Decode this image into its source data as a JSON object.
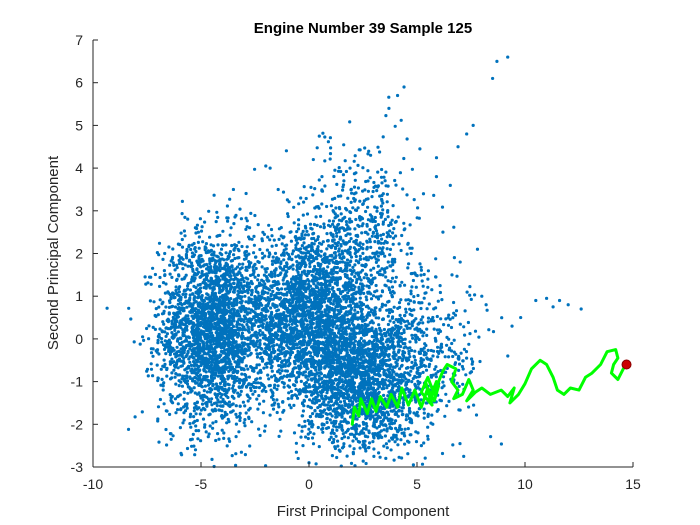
{
  "chart_data": {
    "type": "scatter",
    "title": "Engine Number 39 Sample 125",
    "xlabel": "First Principal Component",
    "ylabel": "Second Principal Component",
    "xlim": [
      -10,
      15
    ],
    "ylim": [
      -3,
      7
    ],
    "xticks": [
      "-10",
      "-5",
      "0",
      "5",
      "10",
      "15"
    ],
    "yticks": [
      "-3",
      "-2",
      "-1",
      "0",
      "1",
      "2",
      "3",
      "4",
      "5",
      "6",
      "7"
    ],
    "grid": false,
    "colors": {
      "scatter": "#0072BD",
      "trajectory": "#00FF00",
      "endpoint": "#CC0000",
      "axes": "#262626"
    },
    "scatter_clusters": [
      {
        "cx": -4.5,
        "cy": 0.2,
        "sx": 1.2,
        "sy": 1.1,
        "n": 2400
      },
      {
        "cx": 0.0,
        "cy": 0.5,
        "sx": 1.6,
        "sy": 1.0,
        "n": 2600
      },
      {
        "cx": 2.5,
        "cy": -1.0,
        "sx": 1.4,
        "sy": 0.8,
        "n": 1800
      },
      {
        "cx": 2.5,
        "cy": 2.5,
        "sx": 1.3,
        "sy": 1.0,
        "n": 500
      },
      {
        "cx": 5.5,
        "cy": -0.2,
        "sx": 1.4,
        "sy": 0.9,
        "n": 350
      }
    ],
    "scatter_points": [
      {
        "x": 9.2,
        "y": 6.6
      },
      {
        "x": 8.7,
        "y": 6.5
      },
      {
        "x": 8.5,
        "y": 6.1
      },
      {
        "x": 7.6,
        "y": 5.0
      },
      {
        "x": 7.3,
        "y": 4.8
      },
      {
        "x": 6.9,
        "y": 4.5
      },
      {
        "x": 4.4,
        "y": 5.9
      },
      {
        "x": 4.1,
        "y": 5.7
      },
      {
        "x": 3.7,
        "y": 5.4
      },
      {
        "x": 7.8,
        "y": 2.1
      },
      {
        "x": 7.0,
        "y": 1.8
      },
      {
        "x": 8.0,
        "y": 1.0
      },
      {
        "x": 8.2,
        "y": 0.8
      },
      {
        "x": 10.5,
        "y": 0.9
      },
      {
        "x": 11.0,
        "y": 0.95
      },
      {
        "x": 11.3,
        "y": 0.75
      },
      {
        "x": 11.6,
        "y": 0.9
      },
      {
        "x": 12.0,
        "y": 0.8
      },
      {
        "x": 12.6,
        "y": 0.7
      },
      {
        "x": 9.4,
        "y": 0.3
      },
      {
        "x": 9.8,
        "y": 0.5
      },
      {
        "x": 6.7,
        "y": 0.6
      },
      {
        "x": 6.2,
        "y": 2.5
      },
      {
        "x": 5.3,
        "y": 3.4
      },
      {
        "x": 5.9,
        "y": 3.8
      },
      {
        "x": 2.1,
        "y": 3.4
      },
      {
        "x": 1.9,
        "y": 4.0
      },
      {
        "x": -1.8,
        "y": 4.0
      },
      {
        "x": -2.0,
        "y": 4.05
      },
      {
        "x": 0.2,
        "y": 4.2
      },
      {
        "x": 0.6,
        "y": 3.8
      },
      {
        "x": -3.5,
        "y": 3.5
      },
      {
        "x": -6.2,
        "y": 0.3
      },
      {
        "x": -6.0,
        "y": 1.1
      },
      {
        "x": -0.5,
        "y": -2.8
      },
      {
        "x": 0.0,
        "y": -2.9
      },
      {
        "x": 2.6,
        "y": -2.5
      },
      {
        "x": 3.8,
        "y": -2.6
      },
      {
        "x": 4.4,
        "y": -2.2
      }
    ],
    "trajectory": [
      {
        "x": 2.0,
        "y": -2.0
      },
      {
        "x": 2.1,
        "y": -1.6
      },
      {
        "x": 2.3,
        "y": -1.8
      },
      {
        "x": 2.4,
        "y": -1.4
      },
      {
        "x": 2.7,
        "y": -1.75
      },
      {
        "x": 2.9,
        "y": -1.4
      },
      {
        "x": 3.1,
        "y": -1.7
      },
      {
        "x": 3.3,
        "y": -1.35
      },
      {
        "x": 3.6,
        "y": -1.6
      },
      {
        "x": 3.8,
        "y": -1.3
      },
      {
        "x": 4.1,
        "y": -1.6
      },
      {
        "x": 4.3,
        "y": -1.15
      },
      {
        "x": 4.6,
        "y": -1.55
      },
      {
        "x": 4.9,
        "y": -1.2
      },
      {
        "x": 5.2,
        "y": -1.6
      },
      {
        "x": 5.5,
        "y": -1.15
      },
      {
        "x": 5.8,
        "y": -1.45
      },
      {
        "x": 6.0,
        "y": -1.1
      },
      {
        "x": 5.7,
        "y": -1.3
      },
      {
        "x": 5.9,
        "y": -1.0
      },
      {
        "x": 5.6,
        "y": -1.4
      },
      {
        "x": 5.4,
        "y": -1.0
      },
      {
        "x": 5.7,
        "y": -1.55
      },
      {
        "x": 5.2,
        "y": -1.25
      },
      {
        "x": 5.5,
        "y": -0.9
      },
      {
        "x": 5.8,
        "y": -1.3
      },
      {
        "x": 6.0,
        "y": -1.0
      },
      {
        "x": 6.2,
        "y": -0.75
      },
      {
        "x": 6.4,
        "y": -0.6
      },
      {
        "x": 6.8,
        "y": -0.7
      },
      {
        "x": 6.6,
        "y": -1.0
      },
      {
        "x": 6.9,
        "y": -1.2
      },
      {
        "x": 6.7,
        "y": -1.4
      },
      {
        "x": 7.1,
        "y": -1.3
      },
      {
        "x": 7.4,
        "y": -0.95
      },
      {
        "x": 7.6,
        "y": -1.2
      },
      {
        "x": 7.3,
        "y": -1.45
      },
      {
        "x": 7.7,
        "y": -1.25
      },
      {
        "x": 8.0,
        "y": -1.15
      },
      {
        "x": 8.4,
        "y": -1.3
      },
      {
        "x": 8.9,
        "y": -1.2
      },
      {
        "x": 9.2,
        "y": -1.35
      },
      {
        "x": 9.5,
        "y": -1.15
      },
      {
        "x": 9.3,
        "y": -1.5
      },
      {
        "x": 9.7,
        "y": -1.3
      },
      {
        "x": 10.0,
        "y": -1.05
      },
      {
        "x": 10.3,
        "y": -0.7
      },
      {
        "x": 10.7,
        "y": -0.5
      },
      {
        "x": 11.0,
        "y": -0.6
      },
      {
        "x": 11.3,
        "y": -0.9
      },
      {
        "x": 11.5,
        "y": -1.2
      },
      {
        "x": 11.8,
        "y": -1.3
      },
      {
        "x": 12.1,
        "y": -1.15
      },
      {
        "x": 12.5,
        "y": -1.2
      },
      {
        "x": 12.8,
        "y": -0.9
      },
      {
        "x": 13.1,
        "y": -0.8
      },
      {
        "x": 13.5,
        "y": -0.6
      },
      {
        "x": 13.8,
        "y": -0.3
      },
      {
        "x": 14.2,
        "y": -0.25
      },
      {
        "x": 14.3,
        "y": -0.45
      },
      {
        "x": 14.1,
        "y": -0.6
      },
      {
        "x": 14.0,
        "y": -0.8
      },
      {
        "x": 14.3,
        "y": -0.95
      },
      {
        "x": 14.6,
        "y": -0.65
      },
      {
        "x": 14.7,
        "y": -0.6
      }
    ],
    "endpoint": {
      "x": 14.7,
      "y": -0.6
    }
  }
}
